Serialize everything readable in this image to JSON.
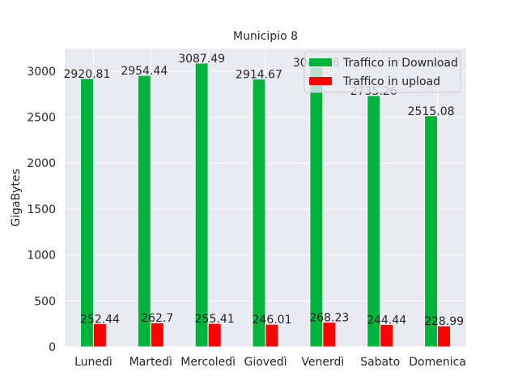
{
  "chart_data": {
    "type": "bar",
    "title": "Municipio 8",
    "xlabel": "",
    "ylabel": "GigaBytes",
    "categories": [
      "Lunedì",
      "Martedì",
      "Mercoledì",
      "Giovedì",
      "Venerdì",
      "Sabato",
      "Domenica"
    ],
    "series": [
      {
        "name": "Traffico in Download",
        "color": "#00b33c",
        "values": [
          2920.81,
          2954.44,
          3087.49,
          2914.67,
          3040.36,
          2735.26,
          2515.08
        ],
        "labels": [
          "2920.81",
          "2954.44",
          "3087.49",
          "2914.67",
          "3040.36",
          "2735.26",
          "2515.08"
        ]
      },
      {
        "name": "Traffico in upload",
        "color": "#ff0000",
        "values": [
          252.44,
          262.7,
          255.41,
          246.01,
          268.23,
          244.44,
          228.99
        ],
        "labels": [
          "252.44",
          "262.7",
          "255.41",
          "246.01",
          "268.23",
          "244.44",
          "228.99"
        ]
      }
    ],
    "yticks": [
      0,
      500,
      1000,
      1500,
      2000,
      2500,
      3000
    ],
    "ylim": [
      0,
      3245
    ],
    "grid": true,
    "legend_position": "top-right"
  }
}
